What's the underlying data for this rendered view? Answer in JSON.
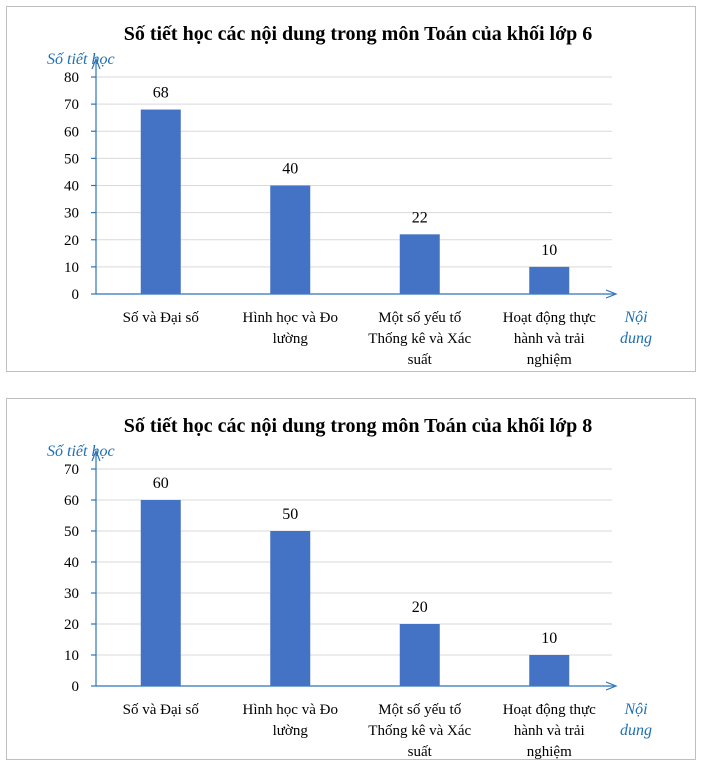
{
  "chart_data": [
    {
      "type": "bar",
      "title": "Số tiết học các nội dung trong môn Toán của khối lớp 6",
      "ylabel": "Số tiết học",
      "xlabel": "Nội dung",
      "xlabel_lines": [
        "Nội",
        "dung"
      ],
      "categories": [
        "Số và Đại số",
        "Hình học và Đo lường",
        "Một số yếu tố Thống kê và Xác suất",
        "Hoạt động thực hành và trải nghiệm"
      ],
      "category_lines": [
        [
          "Số và Đại số"
        ],
        [
          "Hình học và Đo",
          "lường"
        ],
        [
          "Một số yếu tố",
          "Thống kê và Xác",
          "suất"
        ],
        [
          "Hoạt động thực",
          "hành và trải",
          "nghiệm"
        ]
      ],
      "values": [
        68,
        40,
        22,
        10
      ],
      "ylim": [
        0,
        80
      ],
      "yticks": [
        0,
        10,
        20,
        30,
        40,
        50,
        60,
        70,
        80
      ],
      "grid": true,
      "bar_color": "#4472c4"
    },
    {
      "type": "bar",
      "title": "Số tiết học các nội dung trong môn Toán của khối lớp 8",
      "ylabel": "Số tiết học",
      "xlabel": "Nội dung",
      "xlabel_lines": [
        "Nội",
        "dung"
      ],
      "categories": [
        "Số và Đại số",
        "Hình học và Đo lường",
        "Một số yếu tố Thống kê và Xác suất",
        "Hoạt động thực hành và trải nghiệm"
      ],
      "category_lines": [
        [
          "Số và Đại số"
        ],
        [
          "Hình học và Đo",
          "lường"
        ],
        [
          "Một số yếu tố",
          "Thống kê và Xác",
          "suất"
        ],
        [
          "Hoạt động thực",
          "hành và trải",
          "nghiệm"
        ]
      ],
      "values": [
        60,
        50,
        20,
        10
      ],
      "ylim": [
        0,
        70
      ],
      "yticks": [
        0,
        10,
        20,
        30,
        40,
        50,
        60,
        70
      ],
      "grid": true,
      "bar_color": "#4472c4"
    }
  ]
}
